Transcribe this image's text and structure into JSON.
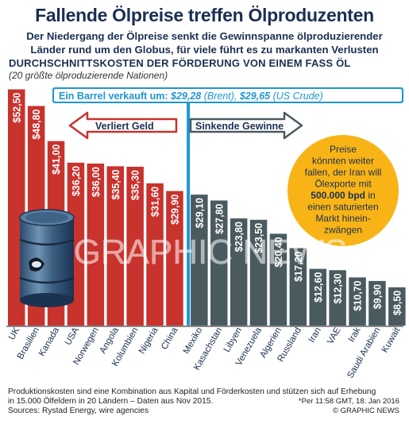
{
  "header": {
    "title": "Fallende Ölpreise treffen Ölproduzenten",
    "subtitle_line1": "Der Niedergang der Ölpreise senkt die Gewinnspanne ölproduzierender",
    "subtitle_line2": "Länder rund um den Globus, für viele führt es zu markanten Verlusten"
  },
  "chart_data": {
    "type": "bar",
    "title": "DURCHSCHNITTSKOSTEN DER FÖRDERUNG VON EINEM FASS ÖL",
    "subtitle": "(20 größte ölproduzierende Nationen)",
    "categories": [
      "UK",
      "Brasilien",
      "Kanada",
      "USA",
      "Norwegen",
      "Angola",
      "Kolumbien",
      "Nigeria",
      "China",
      "Mexiko",
      "Kasachstan",
      "Libyen",
      "Venezuela",
      "Algerien",
      "Russland",
      "Iran",
      "VAE",
      "Irak",
      "Saudi Arabien",
      "Kuwait"
    ],
    "values": [
      52.5,
      48.8,
      41.0,
      36.2,
      36.0,
      35.4,
      35.3,
      31.6,
      29.9,
      29.1,
      27.8,
      23.8,
      23.5,
      20.4,
      17.2,
      12.6,
      12.3,
      10.7,
      9.9,
      8.5
    ],
    "value_labels": [
      "$52,50",
      "$48,80",
      "$41,00",
      "$36,20",
      "$36,00",
      "$35,40",
      "$35,30",
      "$31,60",
      "$29,90",
      "$29,10",
      "$27,80",
      "$23,80",
      "$23,50",
      "$20,40",
      "$17,20",
      "$12,60",
      "$12,30",
      "$10,70",
      "$9,90",
      "$8,50"
    ],
    "ylim": [
      0,
      54
    ],
    "reference_line": {
      "value": 29.28,
      "label_prefix": "Ein Barrel verkauft um: ",
      "brent": "$29,28",
      "brent_label": " (Brent), ",
      "crude": "$29,65",
      "crude_label": " (US Crude)"
    },
    "colors": {
      "loss": "#c8332e",
      "profit": "#4a5b60",
      "reference": "#1e96d2"
    }
  },
  "annotations": {
    "loss_arrow": "Verliert Geld",
    "profit_arrow": "Sinkende Gewinne",
    "callout_pre": [
      "Preise",
      "könnten weiter",
      "fallen, der Iran will",
      "Ölexporte mit"
    ],
    "callout_bold": "500.000 bpd",
    "callout_bold_suffix": " in",
    "callout_post": [
      "einen saturierten",
      "Markt hinein-",
      "zwängen"
    ]
  },
  "footer": {
    "note_line1": "Produktionskosten sind eine Kombination aus Kapital und Förderkosten und stützen sich auf Erhebung",
    "note_line2": "in 15.000 Ölfeldern in 20 Ländern – Daten aus Nov 2015.",
    "meta": "*Per 11:58 GMT, 18. Jan 2016",
    "source": "Sources: Rystad Energy, wire agencies",
    "copyright": "© GRAPHIC NEWS"
  },
  "watermark": "GRAPHIC NEWS"
}
